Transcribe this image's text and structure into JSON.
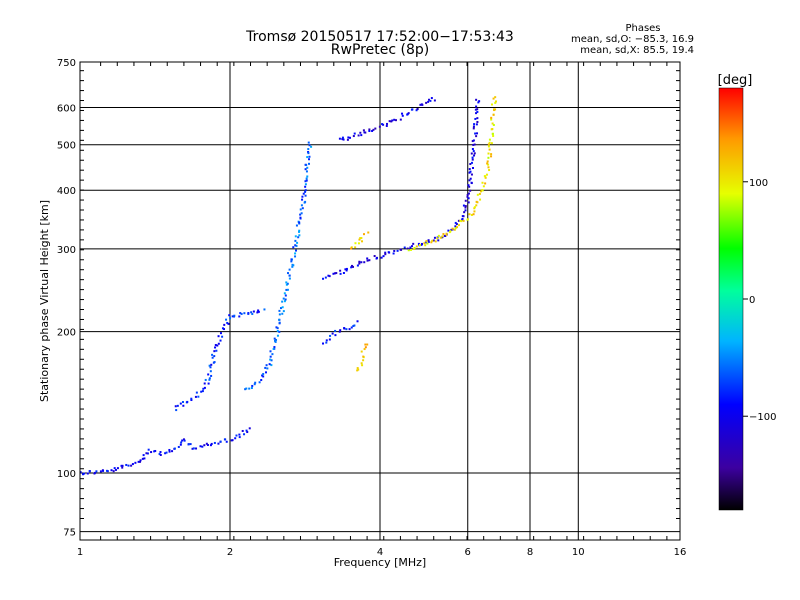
{
  "chart_data": {
    "type": "scatter",
    "title": "Tromsø 20150517 17:52:00−17:53:43",
    "subtitle": "RwPretec (8p)",
    "xlabel": "Frequency [MHz]",
    "ylabel": "Stationary phase Virtual Height [km]",
    "x_scale": "log",
    "y_scale": "log",
    "xlim": [
      1,
      16
    ],
    "ylim": [
      72,
      750
    ],
    "x_ticks": [
      1,
      2,
      4,
      6,
      8,
      10,
      16
    ],
    "x_tick_labels": [
      "1",
      "2",
      "4",
      "6",
      "8",
      "10",
      "16"
    ],
    "y_ticks": [
      75,
      100,
      200,
      300,
      400,
      500,
      600,
      750
    ],
    "y_tick_labels": [
      "75",
      "100",
      "200",
      "300",
      "400",
      "500",
      "600",
      "750"
    ],
    "grid": true,
    "phase_stats": {
      "heading": "Phases",
      "line_o": "mean, sd,O: −85.3, 16.9",
      "line_x": "mean, sd,X:  85.5, 19.4"
    },
    "colorbar": {
      "label": "[deg]",
      "range": [
        -180,
        180
      ],
      "ticks": [
        100,
        0,
        -100
      ],
      "tick_labels": [
        "100",
        "0",
        "−100"
      ],
      "colormap": "rainbow"
    },
    "traces": [
      {
        "points": [
          [
            1.0,
            100
          ],
          [
            1.15,
            101
          ],
          [
            1.3,
            105
          ],
          [
            1.38,
            112
          ],
          [
            1.45,
            110
          ],
          [
            1.55,
            112
          ],
          [
            1.62,
            117
          ],
          [
            1.7,
            113
          ],
          [
            1.9,
            116
          ],
          [
            2.1,
            120
          ],
          [
            2.2,
            126
          ]
        ],
        "phase": -95
      },
      {
        "points": [
          [
            1.55,
            137
          ],
          [
            1.7,
            145
          ],
          [
            1.8,
            155
          ],
          [
            1.85,
            175
          ],
          [
            1.9,
            190
          ],
          [
            1.95,
            205
          ],
          [
            2.0,
            215
          ],
          [
            2.2,
            220
          ],
          [
            2.35,
            222
          ]
        ],
        "phase": -80
      },
      {
        "points": [
          [
            2.15,
            150
          ],
          [
            2.3,
            158
          ],
          [
            2.4,
            170
          ],
          [
            2.5,
            205
          ],
          [
            2.6,
            250
          ],
          [
            2.7,
            300
          ],
          [
            2.8,
            370
          ],
          [
            2.85,
            430
          ],
          [
            2.9,
            510
          ]
        ],
        "phase": -60
      },
      {
        "points": [
          [
            3.1,
            260
          ],
          [
            3.4,
            270
          ],
          [
            3.8,
            285
          ],
          [
            4.2,
            295
          ],
          [
            4.6,
            303
          ],
          [
            5.0,
            310
          ],
          [
            5.4,
            320
          ],
          [
            5.8,
            345
          ],
          [
            6.0,
            380
          ],
          [
            6.1,
            440
          ],
          [
            6.2,
            520
          ],
          [
            6.3,
            630
          ]
        ],
        "phase": -105
      },
      {
        "points": [
          [
            3.3,
            510
          ],
          [
            3.7,
            530
          ],
          [
            4.1,
            550
          ],
          [
            4.5,
            580
          ],
          [
            4.9,
            610
          ],
          [
            5.2,
            630
          ]
        ],
        "phase": -105
      },
      {
        "points": [
          [
            4.6,
            300
          ],
          [
            5.1,
            312
          ],
          [
            5.6,
            330
          ],
          [
            6.1,
            355
          ],
          [
            6.4,
            395
          ],
          [
            6.6,
            450
          ],
          [
            6.7,
            520
          ],
          [
            6.75,
            600
          ],
          [
            6.8,
            640
          ]
        ],
        "phase": 105
      },
      {
        "points": [
          [
            3.5,
            300
          ],
          [
            3.6,
            310
          ],
          [
            3.7,
            318
          ],
          [
            3.8,
            325
          ]
        ],
        "phase": 115
      },
      {
        "points": [
          [
            3.1,
            190
          ],
          [
            3.3,
            200
          ],
          [
            3.5,
            205
          ],
          [
            3.6,
            210
          ]
        ],
        "phase": -85
      },
      {
        "points": [
          [
            3.6,
            165
          ],
          [
            3.65,
            170
          ],
          [
            3.7,
            180
          ],
          [
            3.75,
            190
          ]
        ],
        "phase": 120
      }
    ]
  }
}
